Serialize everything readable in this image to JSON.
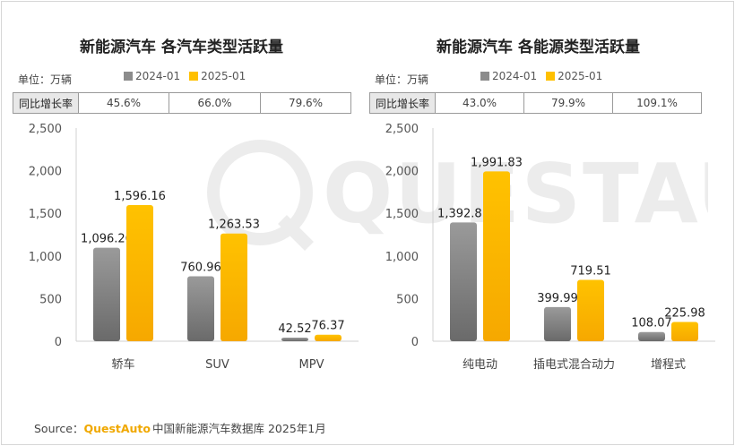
{
  "source": {
    "prefix": "Source：",
    "brand": "QuestAuto",
    "text": "中国新能源汽车数据库 2025年1月"
  },
  "watermark": "QUESTAUTO",
  "colors": {
    "series_2024": "#8c8c8c",
    "series_2025": "#ffc000",
    "growth_label_bg": "#e8e8e8"
  },
  "chart_data": [
    {
      "type": "bar",
      "title": "新能源汽车 各汽车类型活跃量",
      "unit_label": "单位：万辆",
      "growth_label": "同比增长率",
      "growth": [
        "45.6%",
        "66.0%",
        "79.6%"
      ],
      "categories": [
        "轿车",
        "SUV",
        "MPV"
      ],
      "series": [
        {
          "name": "2024-01",
          "values": [
            1096.26,
            760.96,
            42.52
          ],
          "labels": [
            "1,096.26",
            "760.96",
            "42.52"
          ]
        },
        {
          "name": "2025-01",
          "values": [
            1596.16,
            1263.53,
            76.37
          ],
          "labels": [
            "1,596.16",
            "1,263.53",
            "76.37"
          ]
        }
      ],
      "yticks": [
        "0",
        "500",
        "1,000",
        "1,500",
        "2,000",
        "2,500"
      ],
      "ylim": [
        0,
        2500
      ]
    },
    {
      "type": "bar",
      "title": "新能源汽车 各能源类型活跃量",
      "unit_label": "单位：万辆",
      "growth_label": "同比增长率",
      "growth": [
        "43.0%",
        "79.9%",
        "109.1%"
      ],
      "categories": [
        "纯电动",
        "插电式混合动力",
        "增程式"
      ],
      "series": [
        {
          "name": "2024-01",
          "values": [
            1392.81,
            399.99,
            108.07
          ],
          "labels": [
            "1,392.81",
            "399.99",
            "108.07"
          ]
        },
        {
          "name": "2025-01",
          "values": [
            1991.83,
            719.51,
            225.98
          ],
          "labels": [
            "1,991.83",
            "719.51",
            "225.98"
          ]
        }
      ],
      "yticks": [
        "0",
        "500",
        "1,000",
        "1,500",
        "2,000",
        "2,500"
      ],
      "ylim": [
        0,
        2500
      ]
    }
  ]
}
